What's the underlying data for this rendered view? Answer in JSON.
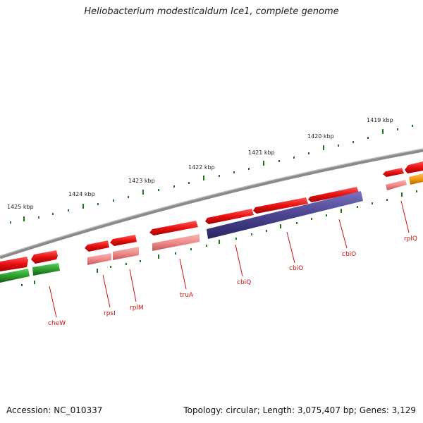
{
  "title": "Heliobacterium modesticaldum Ice1, complete genome",
  "footer": {
    "accession": "Accession: NC_010337",
    "summary": "Topology: circular; Length: 3,075,407 bp; Genes: 3,129"
  },
  "scale_labels": [
    "1425 kbp",
    "1424 kbp",
    "1423 kbp",
    "1422 kbp",
    "1421 kbp",
    "1420 kbp",
    "1419 kbp"
  ],
  "gene_labels": [
    "cheW",
    "rpsI",
    "rplM",
    "truA",
    "cbiQ",
    "cbiO",
    "cbiO",
    "rplQ"
  ],
  "colors": {
    "backbone": "#7a7a7a",
    "forward_cds": "#e81010",
    "reverse_cds": "#f08a8a",
    "green_track": "#2e9e2e",
    "purple_track": "#4a4490",
    "orange_track": "#f59a10",
    "tick": "#1a7a1a",
    "label_text": "#cc1111"
  }
}
